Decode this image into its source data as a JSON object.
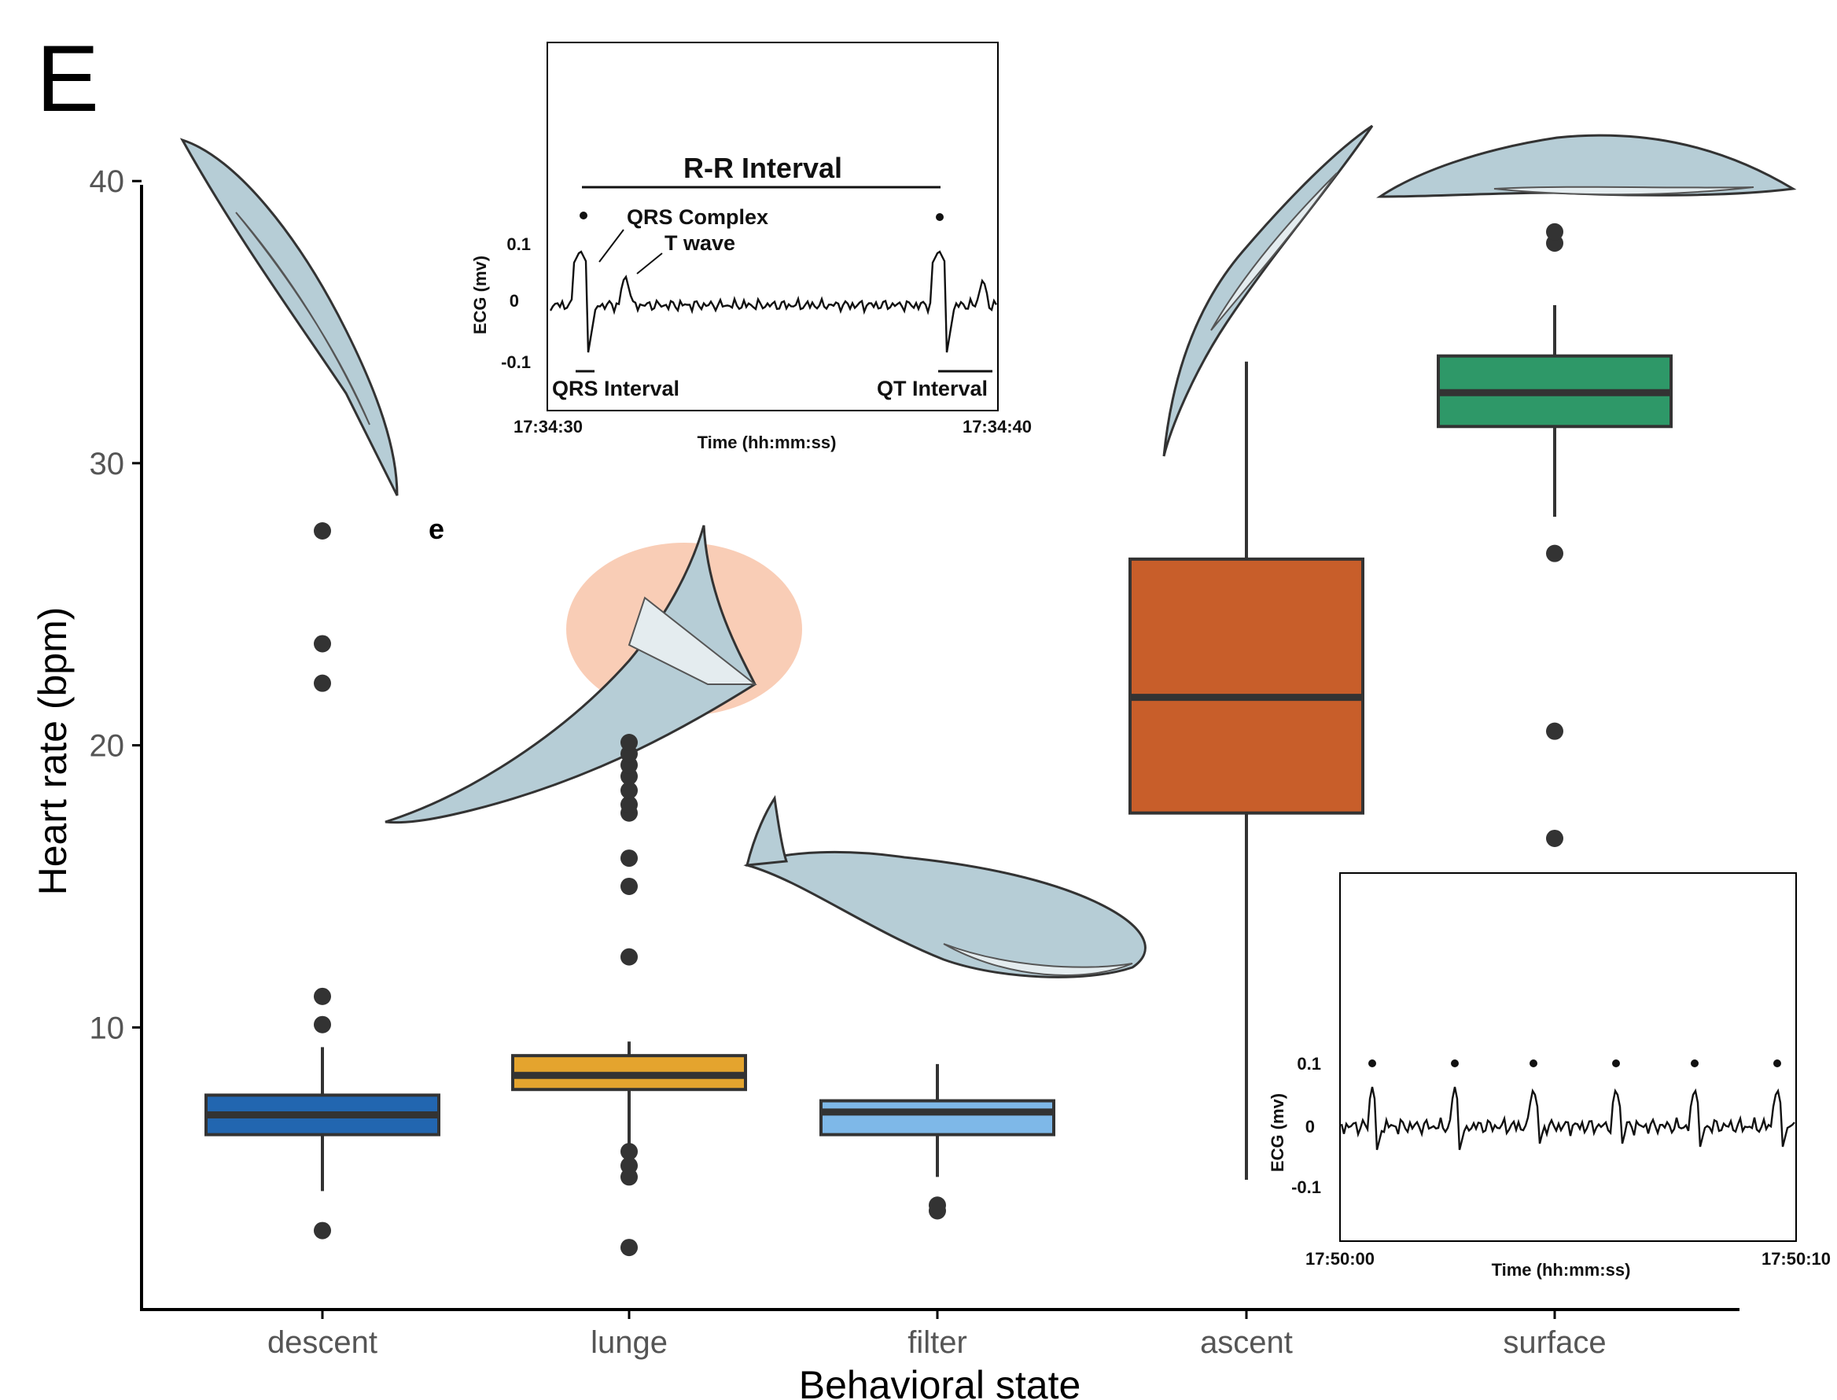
{
  "panel_label": "E",
  "sub_label": "e",
  "chart_data": {
    "type": "box",
    "xlabel": "Behavioral state",
    "ylabel": "Heart rate (bpm)",
    "ylim": [
      0,
      41
    ],
    "yticks": [
      10,
      20,
      30,
      40
    ],
    "categories": [
      "descent",
      "lunge",
      "filter",
      "ascent",
      "surface"
    ],
    "colors": [
      "#2266b0",
      "#e4a42e",
      "#7eb8e8",
      "#c85e2a",
      "#2e9868"
    ],
    "boxes": [
      {
        "category": "descent",
        "whisker_low": 4.2,
        "q1": 6.2,
        "median": 6.9,
        "q3": 7.6,
        "whisker_high": 9.3,
        "outliers": [
          2.8,
          10.1,
          11.1,
          22.2,
          23.6,
          27.6
        ]
      },
      {
        "category": "lunge",
        "whisker_low": 5.8,
        "q1": 7.8,
        "median": 8.3,
        "q3": 9.0,
        "whisker_high": 9.5,
        "outliers": [
          2.2,
          4.7,
          5.1,
          5.6,
          12.5,
          15.0,
          16.0,
          17.6,
          17.9,
          18.4,
          18.9,
          19.3,
          19.7,
          20.1
        ]
      },
      {
        "category": "filter",
        "whisker_low": 4.7,
        "q1": 6.2,
        "median": 7.0,
        "q3": 7.4,
        "whisker_high": 8.7,
        "outliers": [
          3.5,
          3.7
        ]
      },
      {
        "category": "ascent",
        "whisker_low": 4.6,
        "q1": 17.6,
        "median": 21.7,
        "q3": 26.6,
        "whisker_high": 33.6,
        "outliers": []
      },
      {
        "category": "surface",
        "whisker_low": 28.1,
        "q1": 31.3,
        "median": 32.5,
        "q3": 33.8,
        "whisker_high": 35.6,
        "outliers": [
          16.7,
          20.5,
          26.8,
          37.8,
          38.2
        ]
      }
    ]
  },
  "inset_top": {
    "title": "R-R Interval",
    "ylabel": "ECG (mv)",
    "xlabel": "Time (hh:mm:ss)",
    "yticks": [
      "0.1",
      "0",
      "-0.1"
    ],
    "x_start": "17:34:30",
    "x_end": "17:34:40",
    "annotations": {
      "qrs_complex": "QRS Complex",
      "t_wave": "T wave",
      "qrs_interval": "QRS Interval",
      "qt_interval": "QT Interval"
    }
  },
  "inset_bottom": {
    "ylabel": "ECG (mv)",
    "xlabel": "Time (hh:mm:ss)",
    "yticks": [
      "0.1",
      "0",
      "-0.1"
    ],
    "x_start": "17:50:00",
    "x_end": "17:50:10"
  }
}
